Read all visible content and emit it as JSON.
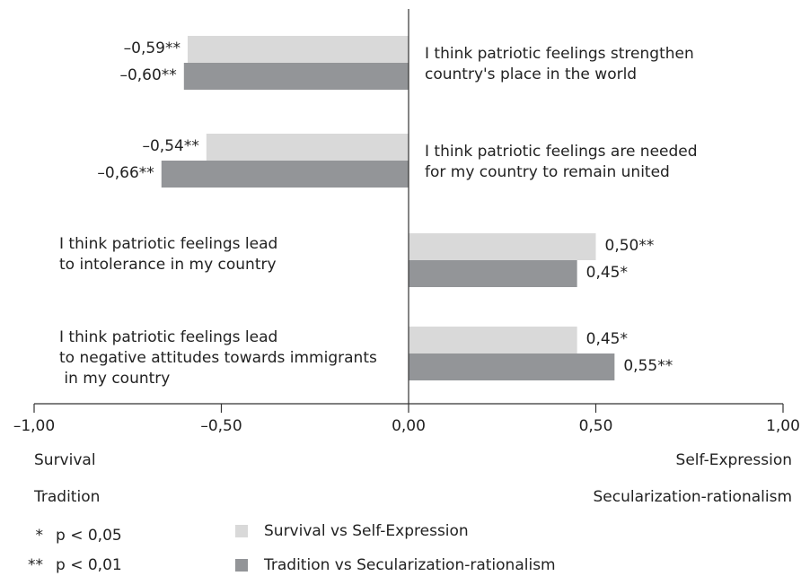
{
  "chart_data": {
    "type": "bar",
    "orientation": "horizontal",
    "categories": [
      [
        "I think patriotic feelings strengthen",
        "country's place in the world"
      ],
      [
        "I think patriotic feelings are needed",
        "for my country to remain united"
      ],
      [
        "I think patriotic feelings lead",
        "to intolerance in my country"
      ],
      [
        "I think patriotic feelings lead",
        "to negative attitudes towards immigrants",
        " in my country"
      ]
    ],
    "series": [
      {
        "name": "Survival vs Self-Expression",
        "color": "#d9d9d9",
        "values": [
          -0.59,
          -0.54,
          0.5,
          0.45
        ],
        "labels": [
          "–0,59**",
          "–0,54**",
          "0,50**",
          "0,45*"
        ]
      },
      {
        "name": "Tradition vs Secularization-rationalism",
        "color": "#939598",
        "values": [
          -0.6,
          -0.66,
          0.45,
          0.55
        ],
        "labels": [
          "–0,60**",
          "–0,66**",
          "0,45*",
          "0,55**"
        ]
      }
    ],
    "xlim": [
      -1.0,
      1.0
    ],
    "xticks": [
      -1.0,
      -0.5,
      0.0,
      0.5,
      1.0
    ],
    "xtick_labels": [
      "–1,00",
      "–0,50",
      "0,00",
      "0,50",
      "1,00"
    ],
    "axis_end_labels": {
      "left": [
        "Survival",
        "Tradition"
      ],
      "right": [
        "Self-Expression",
        "Secularization-rationalism"
      ]
    },
    "significance_notes": [
      {
        "symbol": "*",
        "text": "p < 0,05"
      },
      {
        "symbol": "**",
        "text": "p < 0,01"
      }
    ],
    "legend_position": "bottom",
    "grid": false
  }
}
